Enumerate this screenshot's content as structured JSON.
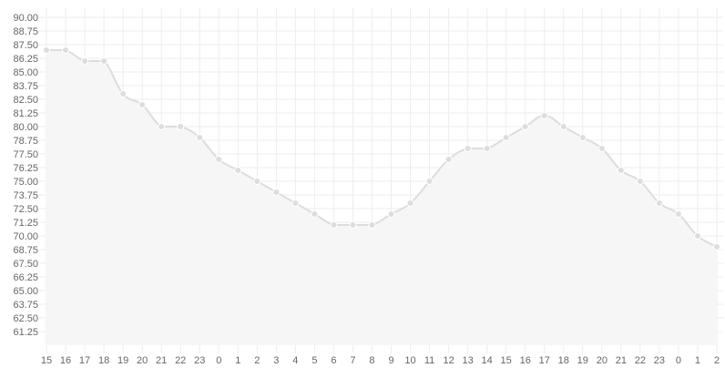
{
  "chart_data": {
    "type": "line",
    "title": "",
    "xlabel": "",
    "ylabel": "",
    "categories": [
      "15",
      "16",
      "17",
      "18",
      "19",
      "20",
      "21",
      "22",
      "23",
      "0",
      "1",
      "2",
      "3",
      "4",
      "5",
      "6",
      "7",
      "8",
      "9",
      "10",
      "11",
      "12",
      "13",
      "14",
      "15",
      "16",
      "17",
      "18",
      "19",
      "20",
      "21",
      "22",
      "23",
      "0",
      "1",
      "2"
    ],
    "series": [
      {
        "values": [
          87,
          87,
          86,
          86,
          83,
          82,
          80,
          80,
          79,
          77,
          76,
          75,
          74,
          73,
          72,
          71,
          71,
          71,
          72,
          73,
          75,
          77,
          78,
          78,
          79,
          80,
          81,
          80,
          79,
          78,
          76,
          75,
          73,
          72,
          70,
          69
        ]
      }
    ],
    "y_ticks": [
      "90.00",
      "88.75",
      "87.50",
      "86.25",
      "85.00",
      "83.75",
      "82.50",
      "81.25",
      "80.00",
      "78.75",
      "77.50",
      "76.25",
      "75.00",
      "73.75",
      "72.50",
      "71.25",
      "70.00",
      "68.75",
      "67.50",
      "66.25",
      "65.00",
      "63.75",
      "62.50",
      "61.25"
    ],
    "ylim": [
      60,
      90
    ],
    "grid": true,
    "legend": "none",
    "colors": {
      "line": "#dddddd",
      "fill": "#f6f6f6",
      "point": "#dddddd",
      "point_stroke": "#ffffff",
      "grid": "#eeeeee",
      "tick_text": "#666666"
    }
  }
}
